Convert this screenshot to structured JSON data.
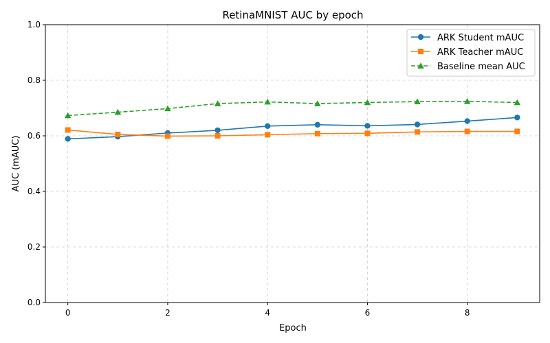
{
  "chart_data": {
    "type": "line",
    "title": "RetinaMNIST AUC by epoch",
    "xlabel": "Epoch",
    "ylabel": "AUC (mAUC)",
    "xlim": [
      -0.45,
      9.45
    ],
    "ylim": [
      0.0,
      1.0
    ],
    "x_ticks": [
      0,
      2,
      4,
      6,
      8
    ],
    "y_ticks": [
      0.0,
      0.2,
      0.4,
      0.6,
      0.8,
      1.0
    ],
    "x_tick_labels": [
      "0",
      "2",
      "4",
      "6",
      "8"
    ],
    "y_tick_labels": [
      "0.0",
      "0.2",
      "0.4",
      "0.6",
      "0.8",
      "1.0"
    ],
    "grid": true,
    "legend_position": "top-right",
    "x": [
      0,
      1,
      2,
      3,
      4,
      5,
      6,
      7,
      8,
      9
    ],
    "series": [
      {
        "name": "ARK Student mAUC",
        "color": "#1f77b4",
        "marker": "circle",
        "line_style": "solid",
        "values": [
          0.589,
          0.597,
          0.61,
          0.62,
          0.635,
          0.64,
          0.636,
          0.641,
          0.653,
          0.666
        ]
      },
      {
        "name": "ARK Teacher mAUC",
        "color": "#ff7f0e",
        "marker": "square",
        "line_style": "solid",
        "values": [
          0.621,
          0.605,
          0.599,
          0.6,
          0.604,
          0.608,
          0.609,
          0.614,
          0.616,
          0.616
        ]
      },
      {
        "name": "Baseline mean AUC",
        "color": "#2ca02c",
        "marker": "triangle",
        "line_style": "dashed",
        "values": [
          0.673,
          0.685,
          0.698,
          0.716,
          0.722,
          0.716,
          0.72,
          0.723,
          0.724,
          0.72
        ]
      }
    ]
  }
}
